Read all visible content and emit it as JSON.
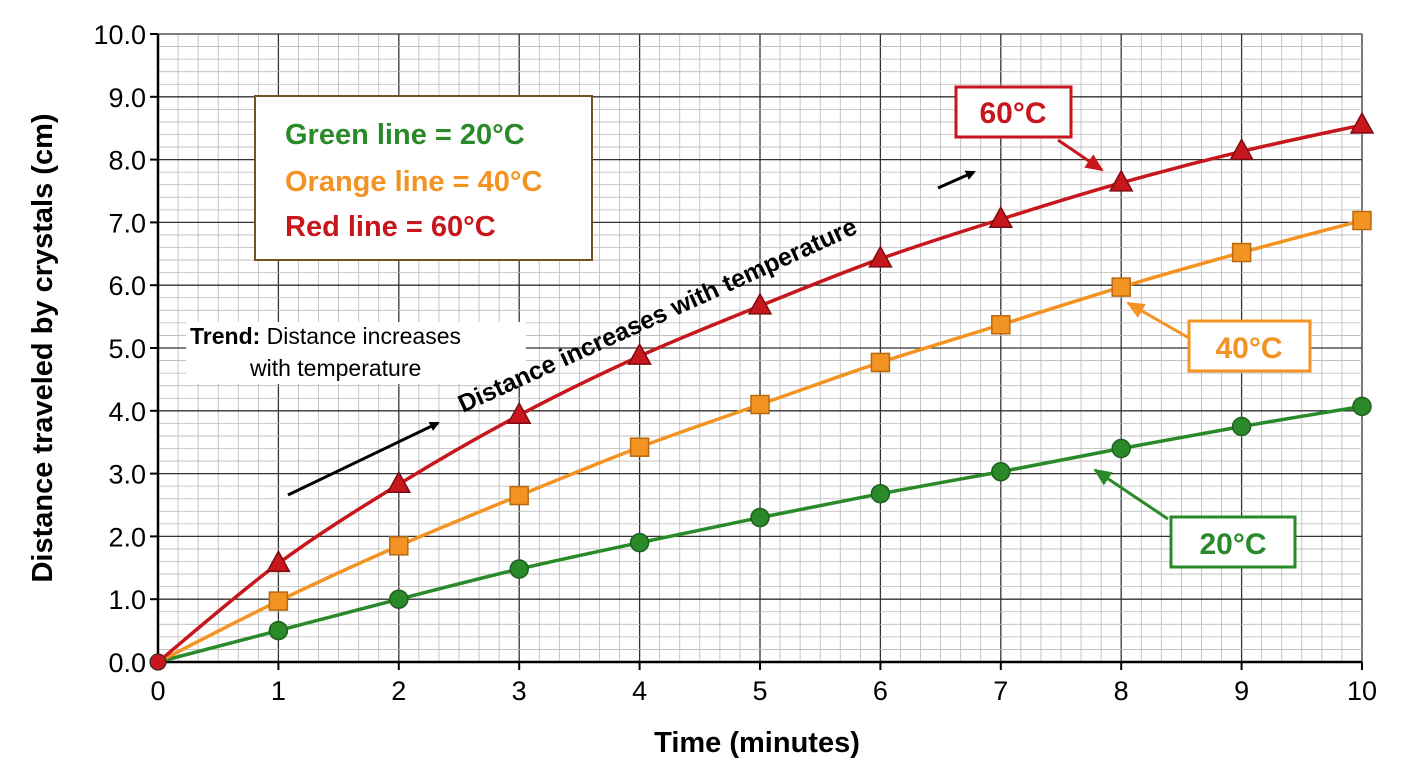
{
  "chart_data": {
    "type": "line",
    "xlabel": "Time (minutes)",
    "ylabel": "Distance traveled by crystals (cm)",
    "xlim": [
      0,
      10
    ],
    "ylim": [
      0,
      10
    ],
    "x_ticks": [
      "0",
      "1",
      "2",
      "3",
      "4",
      "5",
      "6",
      "7",
      "8",
      "9",
      "10"
    ],
    "y_ticks": [
      "0.0",
      "1.0",
      "2.0",
      "3.0",
      "4.0",
      "5.0",
      "6.0",
      "7.0",
      "8.0",
      "9.0",
      "10.0"
    ],
    "grid": true,
    "x": [
      0,
      1,
      2,
      3,
      4,
      5,
      6,
      7,
      8,
      9,
      10
    ],
    "series": [
      {
        "name": "20°C",
        "color": "#2a8a2a",
        "marker": "circle",
        "values": [
          0.0,
          0.5,
          1.0,
          1.48,
          1.9,
          2.3,
          2.68,
          3.03,
          3.4,
          3.75,
          4.07
        ]
      },
      {
        "name": "40°C",
        "color": "#f39322",
        "marker": "square",
        "values": [
          0.0,
          0.97,
          1.85,
          2.65,
          3.42,
          4.1,
          4.77,
          5.37,
          5.97,
          6.52,
          7.03
        ]
      },
      {
        "name": "60°C",
        "color": "#c8161d",
        "marker": "triangle",
        "values": [
          0.0,
          1.57,
          2.83,
          3.93,
          4.87,
          5.67,
          6.42,
          7.05,
          7.63,
          8.13,
          8.55
        ]
      }
    ],
    "legend": {
      "placement": "top-left",
      "entries": [
        {
          "text": "Green line = 20°C",
          "color": "#2a8a2a"
        },
        {
          "text": "Orange line = 40°C",
          "color": "#f39322"
        },
        {
          "text": "Red line = 60°C",
          "color": "#c8161d"
        }
      ]
    },
    "annotations": {
      "trend_label": "Trend:",
      "trend_line1": "Distance increases",
      "trend_line2": "with temperature",
      "diagonal_text": "Distance increases with temperature",
      "callout_60": "60°C",
      "callout_40": "40°C",
      "callout_20": "20°C"
    }
  }
}
